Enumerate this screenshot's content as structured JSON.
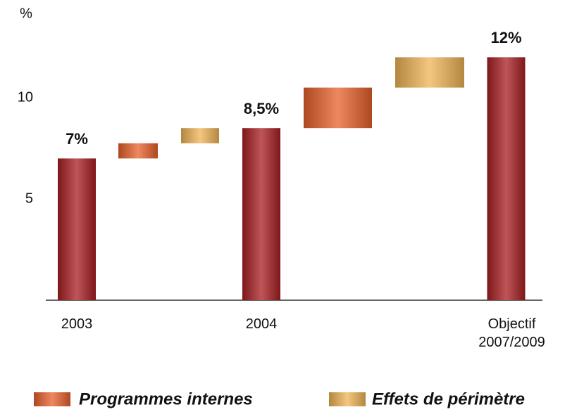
{
  "chart_data": {
    "type": "waterfall",
    "y_label": "%",
    "categories": [
      "2003",
      null,
      null,
      "2004",
      null,
      null,
      "Objectif 2007/2009"
    ],
    "totals": {
      "color": "#a81e22",
      "values": [
        7,
        null,
        null,
        8.5,
        null,
        null,
        12
      ],
      "value_labels": [
        "7%",
        null,
        null,
        "8,5%",
        null,
        null,
        "12%"
      ]
    },
    "series": [
      {
        "name": "Programmes internes",
        "color": "#e8602c",
        "values": [
          null,
          0.75,
          null,
          null,
          2,
          null,
          null
        ]
      },
      {
        "name": "Effets de périmètre",
        "color": "#f0b455",
        "values": [
          null,
          null,
          0.75,
          null,
          null,
          1.5,
          null
        ]
      }
    ],
    "ylim": [
      0,
      12
    ],
    "yticks": [
      5,
      10
    ],
    "grid": false,
    "legend": "bottom"
  }
}
